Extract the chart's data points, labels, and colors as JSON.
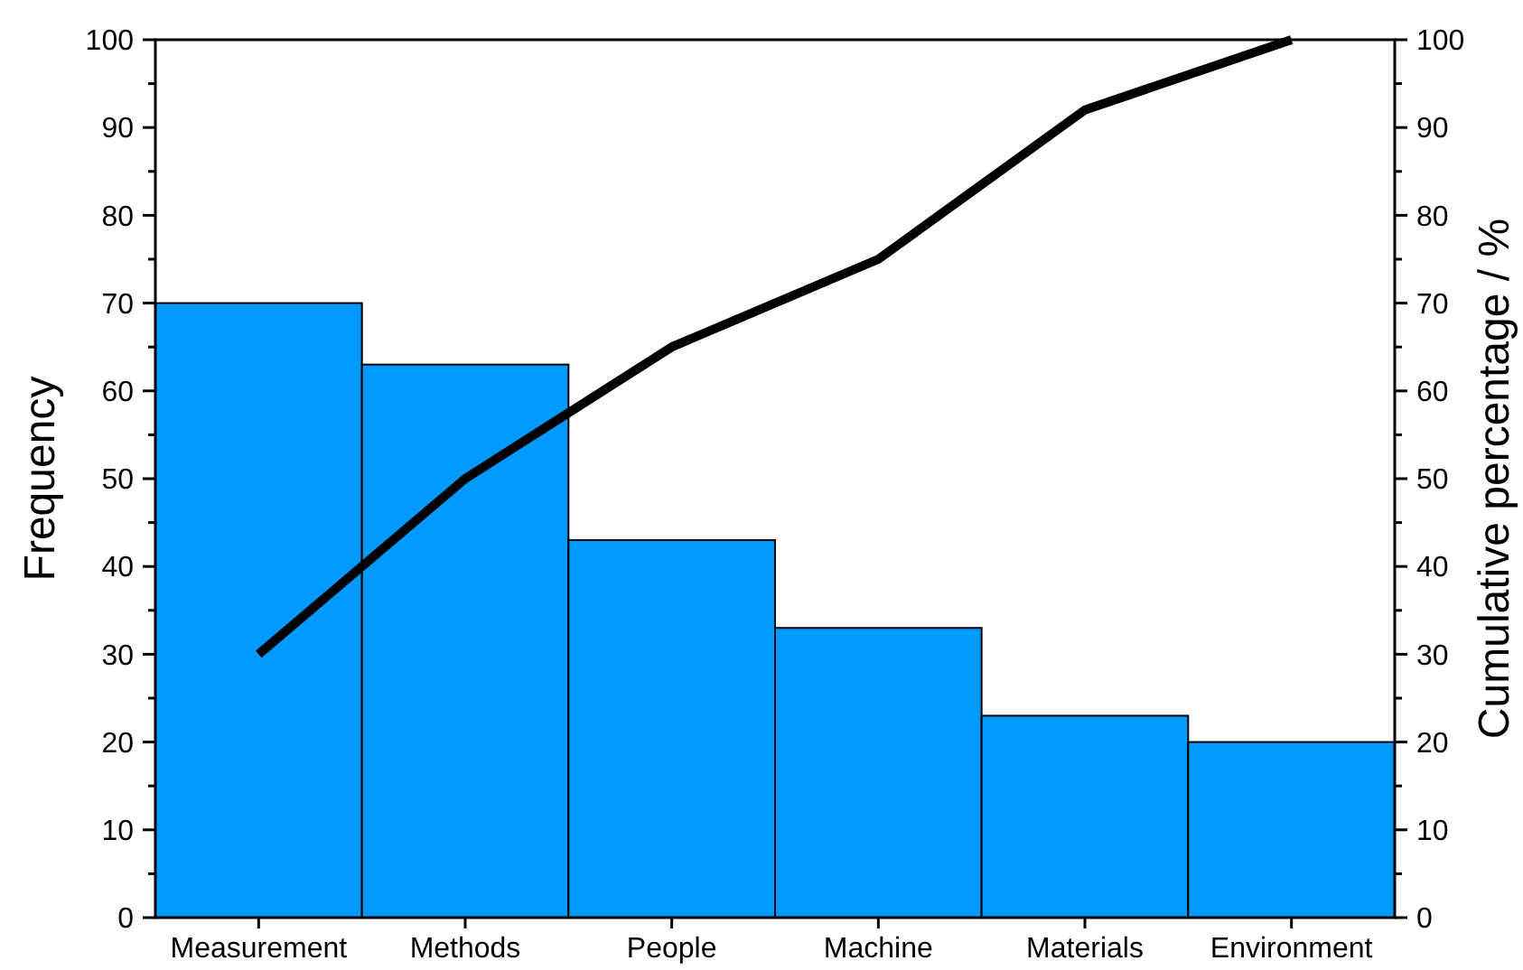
{
  "chart_data": {
    "type": "bar",
    "ylabel": "Frequency",
    "y2label": "Cumulative percentage / %",
    "categories": [
      "Measurement",
      "Methods",
      "People",
      "Machine",
      "Materials",
      "Environment"
    ],
    "series": [
      {
        "color": "#0099ff",
        "values": [
          70,
          63,
          43,
          33,
          23,
          20
        ]
      },
      {
        "type": "line",
        "color": "#000000",
        "axis": "y2",
        "values": [
          30,
          50,
          65,
          75,
          92,
          100
        ]
      }
    ],
    "ylim": [
      0,
      100
    ],
    "yticks": [
      0,
      {
        "value": 5,
        "label": null
      },
      10,
      {
        "value": 15,
        "label": null
      },
      20,
      {
        "value": 25,
        "label": null
      },
      30,
      {
        "value": 35,
        "label": null
      },
      40,
      {
        "value": 45,
        "label": null
      },
      50,
      {
        "value": 55,
        "label": null
      },
      60,
      {
        "value": 65,
        "label": null
      },
      70,
      {
        "value": 75,
        "label": null
      },
      80,
      {
        "value": 85,
        "label": null
      },
      90,
      {
        "value": 95,
        "label": null
      },
      100
    ],
    "y2lim": [
      0,
      100
    ],
    "y2ticks": [
      0,
      {
        "value": 5,
        "label": null
      },
      10,
      {
        "value": 15,
        "label": null
      },
      20,
      {
        "value": 25,
        "label": null
      },
      30,
      {
        "value": 35,
        "label": null
      },
      40,
      {
        "value": 45,
        "label": null
      },
      50,
      {
        "value": 55,
        "label": null
      },
      60,
      {
        "value": 65,
        "label": null
      },
      70,
      {
        "value": 75,
        "label": null
      },
      80,
      {
        "value": 85,
        "label": null
      },
      90,
      {
        "value": 95,
        "label": null
      },
      100
    ],
    "grid": false,
    "marker": "none",
    "line_style": "solid"
  }
}
